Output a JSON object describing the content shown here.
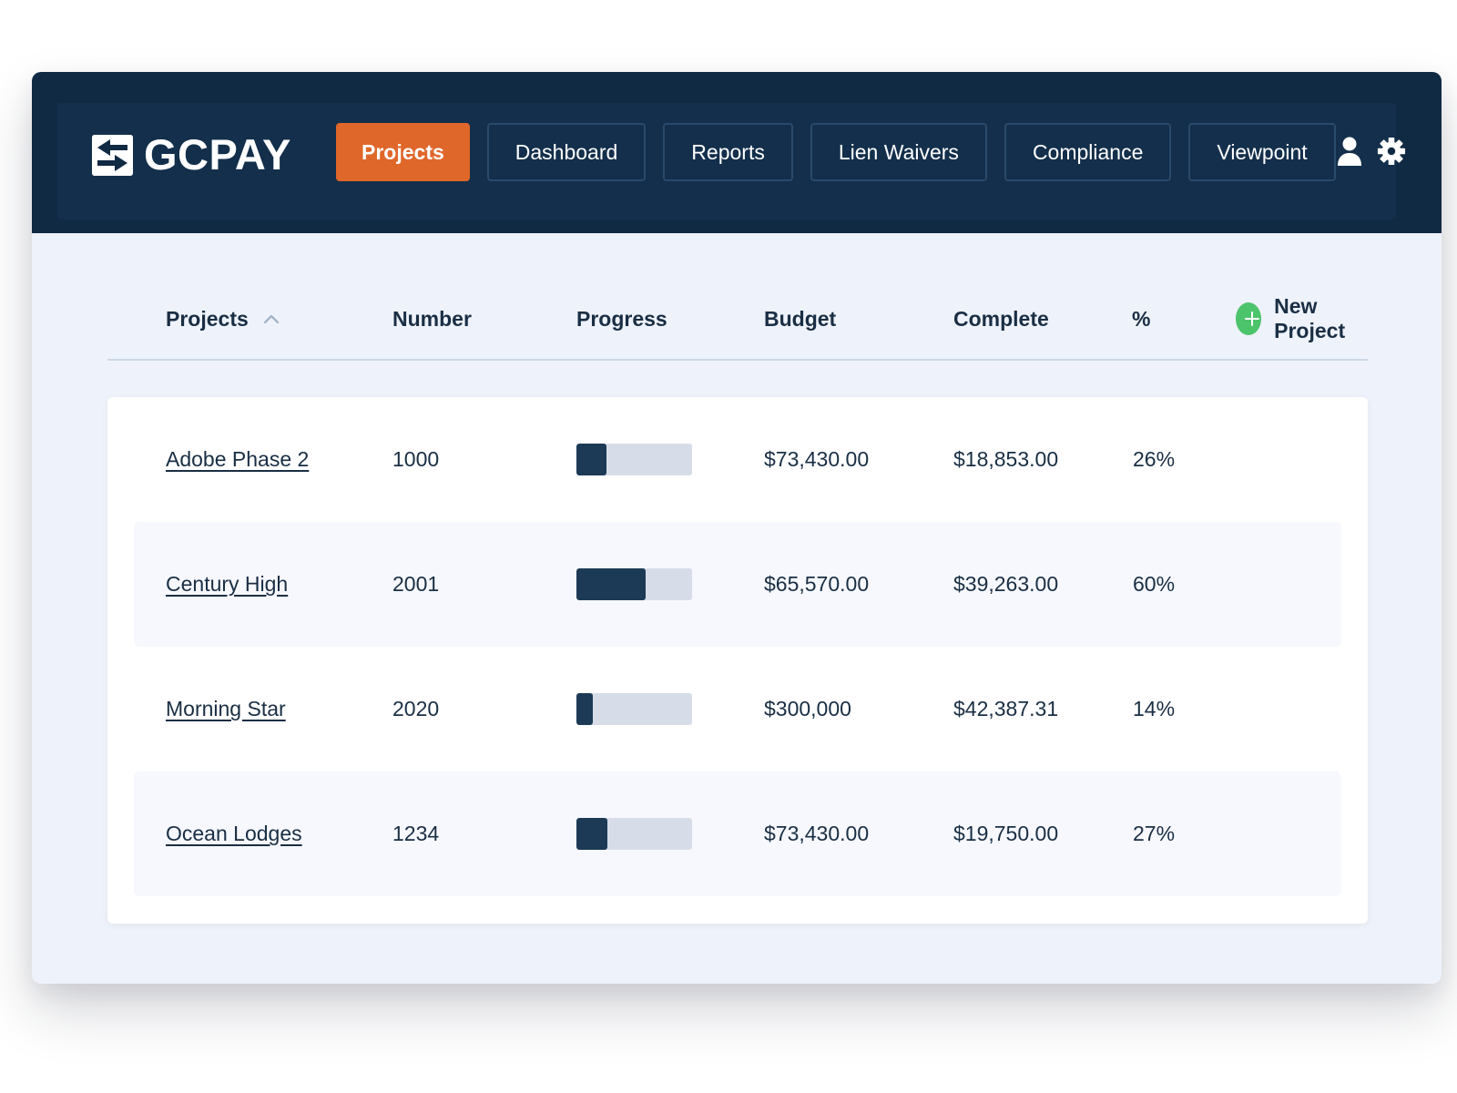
{
  "header": {
    "logo_text": "GCPAY",
    "nav": [
      {
        "label": "Projects",
        "active": true
      },
      {
        "label": "Dashboard",
        "active": false
      },
      {
        "label": "Reports",
        "active": false
      },
      {
        "label": "Lien Waivers",
        "active": false
      },
      {
        "label": "Compliance",
        "active": false
      },
      {
        "label": "Viewpoint",
        "active": false
      }
    ],
    "icons": [
      "user-icon",
      "gear-icon"
    ]
  },
  "table": {
    "columns": {
      "projects": "Projects",
      "number": "Number",
      "progress": "Progress",
      "budget": "Budget",
      "complete": "Complete",
      "percent": "%"
    },
    "sort_icon": "chevron-up-icon",
    "new_project_label": "New Project",
    "rows": [
      {
        "name": "Adobe Phase 2",
        "number": "1000",
        "progress": 0.26,
        "budget": "$73,430.00",
        "complete": "$18,853.00",
        "percent": "26%"
      },
      {
        "name": "Century High",
        "number": "2001",
        "progress": 0.6,
        "budget": "$65,570.00",
        "complete": "$39,263.00",
        "percent": "60%"
      },
      {
        "name": "Morning Star",
        "number": "2020",
        "progress": 0.14,
        "budget": "$300,000",
        "complete": "$42,387.31",
        "percent": "14%"
      },
      {
        "name": "Ocean Lodges",
        "number": "1234",
        "progress": 0.27,
        "budget": "$73,430.00",
        "complete": "$19,750.00",
        "percent": "27%"
      }
    ]
  },
  "colors": {
    "header_bg": "#112a44",
    "accent": "#e0672a",
    "add_green": "#4cc46b",
    "progress_fill": "#1c3a55",
    "progress_track": "#d7dde8"
  }
}
